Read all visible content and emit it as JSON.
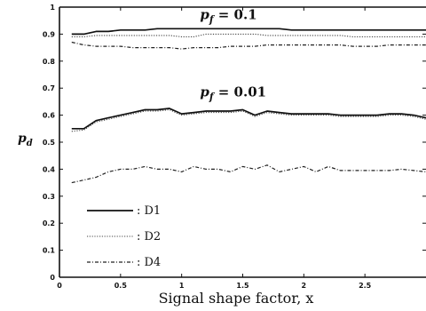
{
  "chart_data": {
    "type": "line",
    "xlabel": "Signal shape factor, x",
    "ylabel": "p",
    "ylabel_sub": "d",
    "xlim": [
      0,
      3
    ],
    "ylim": [
      0,
      1
    ],
    "x_ticks": [
      0,
      0.5,
      1,
      1.5,
      2,
      2.5
    ],
    "x_tick_labels": [
      "0",
      "0.5",
      "1",
      "1.5",
      "2",
      "2.5"
    ],
    "y_ticks": [
      0,
      0.1,
      0.2,
      0.3,
      0.4,
      0.5,
      0.6,
      0.7,
      0.8,
      0.9,
      1
    ],
    "y_tick_labels": [
      "0",
      "0.1",
      "0.2",
      "0.3",
      "0.4",
      "0.5",
      "0.6",
      "0.7",
      "0.8",
      "0.9",
      "1"
    ],
    "annotations": [
      {
        "prefix": "p",
        "sub": "f",
        "text": " = 0.1",
        "x": 1.15,
        "y": 0.955
      },
      {
        "prefix": "p",
        "sub": "f",
        "text": " = 0.01",
        "x": 1.15,
        "y": 0.67
      }
    ],
    "legend": {
      "placement": "bottom-left",
      "entries": [
        {
          "label": ": D1",
          "style": "solid"
        },
        {
          "label": ": D2",
          "style": "dotted"
        },
        {
          "label": ": D4",
          "style": "dashdot"
        }
      ]
    },
    "x": [
      0.1,
      0.2,
      0.3,
      0.4,
      0.5,
      0.6,
      0.7,
      0.8,
      0.9,
      1.0,
      1.1,
      1.2,
      1.3,
      1.4,
      1.5,
      1.6,
      1.7,
      1.8,
      1.9,
      2.0,
      2.1,
      2.2,
      2.3,
      2.4,
      2.5,
      2.6,
      2.7,
      2.8,
      2.9,
      3.0
    ],
    "series": [
      {
        "group": "pf=0.1",
        "style": "solid",
        "values": [
          0.9,
          0.9,
          0.91,
          0.91,
          0.915,
          0.915,
          0.915,
          0.92,
          0.92,
          0.92,
          0.92,
          0.92,
          0.92,
          0.92,
          0.92,
          0.92,
          0.92,
          0.92,
          0.915,
          0.915,
          0.915,
          0.915,
          0.915,
          0.915,
          0.915,
          0.915,
          0.915,
          0.915,
          0.915,
          0.915
        ]
      },
      {
        "group": "pf=0.1",
        "style": "dotted",
        "values": [
          0.89,
          0.89,
          0.895,
          0.895,
          0.895,
          0.895,
          0.895,
          0.895,
          0.895,
          0.89,
          0.89,
          0.9,
          0.9,
          0.9,
          0.9,
          0.9,
          0.895,
          0.895,
          0.895,
          0.895,
          0.895,
          0.895,
          0.895,
          0.89,
          0.89,
          0.89,
          0.89,
          0.89,
          0.89,
          0.89
        ]
      },
      {
        "group": "pf=0.1",
        "style": "dashdot",
        "values": [
          0.87,
          0.86,
          0.855,
          0.855,
          0.855,
          0.85,
          0.85,
          0.85,
          0.85,
          0.845,
          0.85,
          0.85,
          0.85,
          0.855,
          0.855,
          0.855,
          0.86,
          0.86,
          0.86,
          0.86,
          0.86,
          0.86,
          0.86,
          0.855,
          0.855,
          0.855,
          0.86,
          0.86,
          0.86,
          0.86
        ]
      },
      {
        "group": "pf=0.01",
        "style": "solid",
        "values": [
          0.55,
          0.55,
          0.58,
          0.59,
          0.6,
          0.61,
          0.62,
          0.62,
          0.625,
          0.605,
          0.61,
          0.615,
          0.615,
          0.615,
          0.62,
          0.6,
          0.615,
          0.61,
          0.605,
          0.605,
          0.605,
          0.605,
          0.6,
          0.6,
          0.6,
          0.6,
          0.605,
          0.605,
          0.6,
          0.59
        ]
      },
      {
        "group": "pf=0.01",
        "style": "dotted",
        "values": [
          0.54,
          0.545,
          0.575,
          0.585,
          0.595,
          0.605,
          0.615,
          0.615,
          0.62,
          0.6,
          0.605,
          0.61,
          0.61,
          0.61,
          0.615,
          0.595,
          0.61,
          0.605,
          0.6,
          0.6,
          0.6,
          0.6,
          0.595,
          0.595,
          0.595,
          0.595,
          0.6,
          0.6,
          0.595,
          0.585
        ]
      },
      {
        "group": "pf=0.01",
        "style": "dashdot",
        "values": [
          0.35,
          0.36,
          0.37,
          0.39,
          0.4,
          0.4,
          0.41,
          0.4,
          0.4,
          0.39,
          0.41,
          0.4,
          0.4,
          0.39,
          0.41,
          0.4,
          0.415,
          0.39,
          0.4,
          0.41,
          0.39,
          0.41,
          0.395,
          0.395,
          0.395,
          0.395,
          0.395,
          0.4,
          0.395,
          0.39
        ]
      }
    ]
  }
}
